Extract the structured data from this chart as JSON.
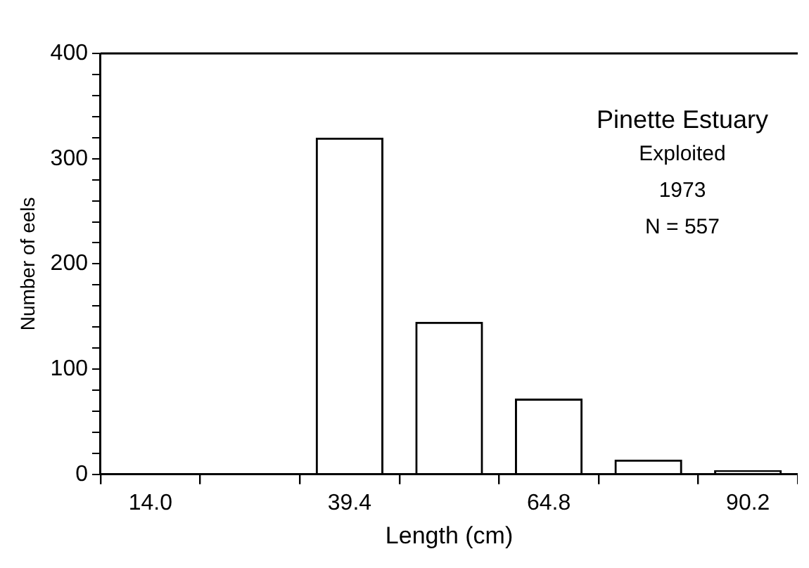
{
  "chart_data": {
    "type": "bar",
    "xlabel": "Length (cm)",
    "ylabel": "Number of eels",
    "categories": [
      "14.0",
      null,
      "39.4",
      null,
      "64.8",
      null,
      "90.2"
    ],
    "values": [
      0,
      0,
      320,
      145,
      72,
      14,
      4
    ],
    "color": "#000000",
    "ylim": [
      0,
      400
    ],
    "yticks": [
      0,
      {
        "value": 20,
        "label": null
      },
      {
        "value": 40,
        "label": null
      },
      {
        "value": 60,
        "label": null
      },
      {
        "value": 80,
        "label": null
      },
      100,
      {
        "value": 120,
        "label": null
      },
      {
        "value": 140,
        "label": null
      },
      {
        "value": 160,
        "label": null
      },
      {
        "value": 180,
        "label": null
      },
      200,
      {
        "value": 220,
        "label": null
      },
      {
        "value": 240,
        "label": null
      },
      {
        "value": 260,
        "label": null
      },
      {
        "value": 280,
        "label": null
      },
      300,
      {
        "value": 320,
        "label": null
      },
      {
        "value": 340,
        "label": null
      },
      {
        "value": 360,
        "label": null
      },
      {
        "value": 380,
        "label": null
      },
      400
    ],
    "annotations": [
      "Pinette Estuary",
      "Exploited",
      "1973",
      "N = 557"
    ],
    "grid": false,
    "legend": false
  }
}
